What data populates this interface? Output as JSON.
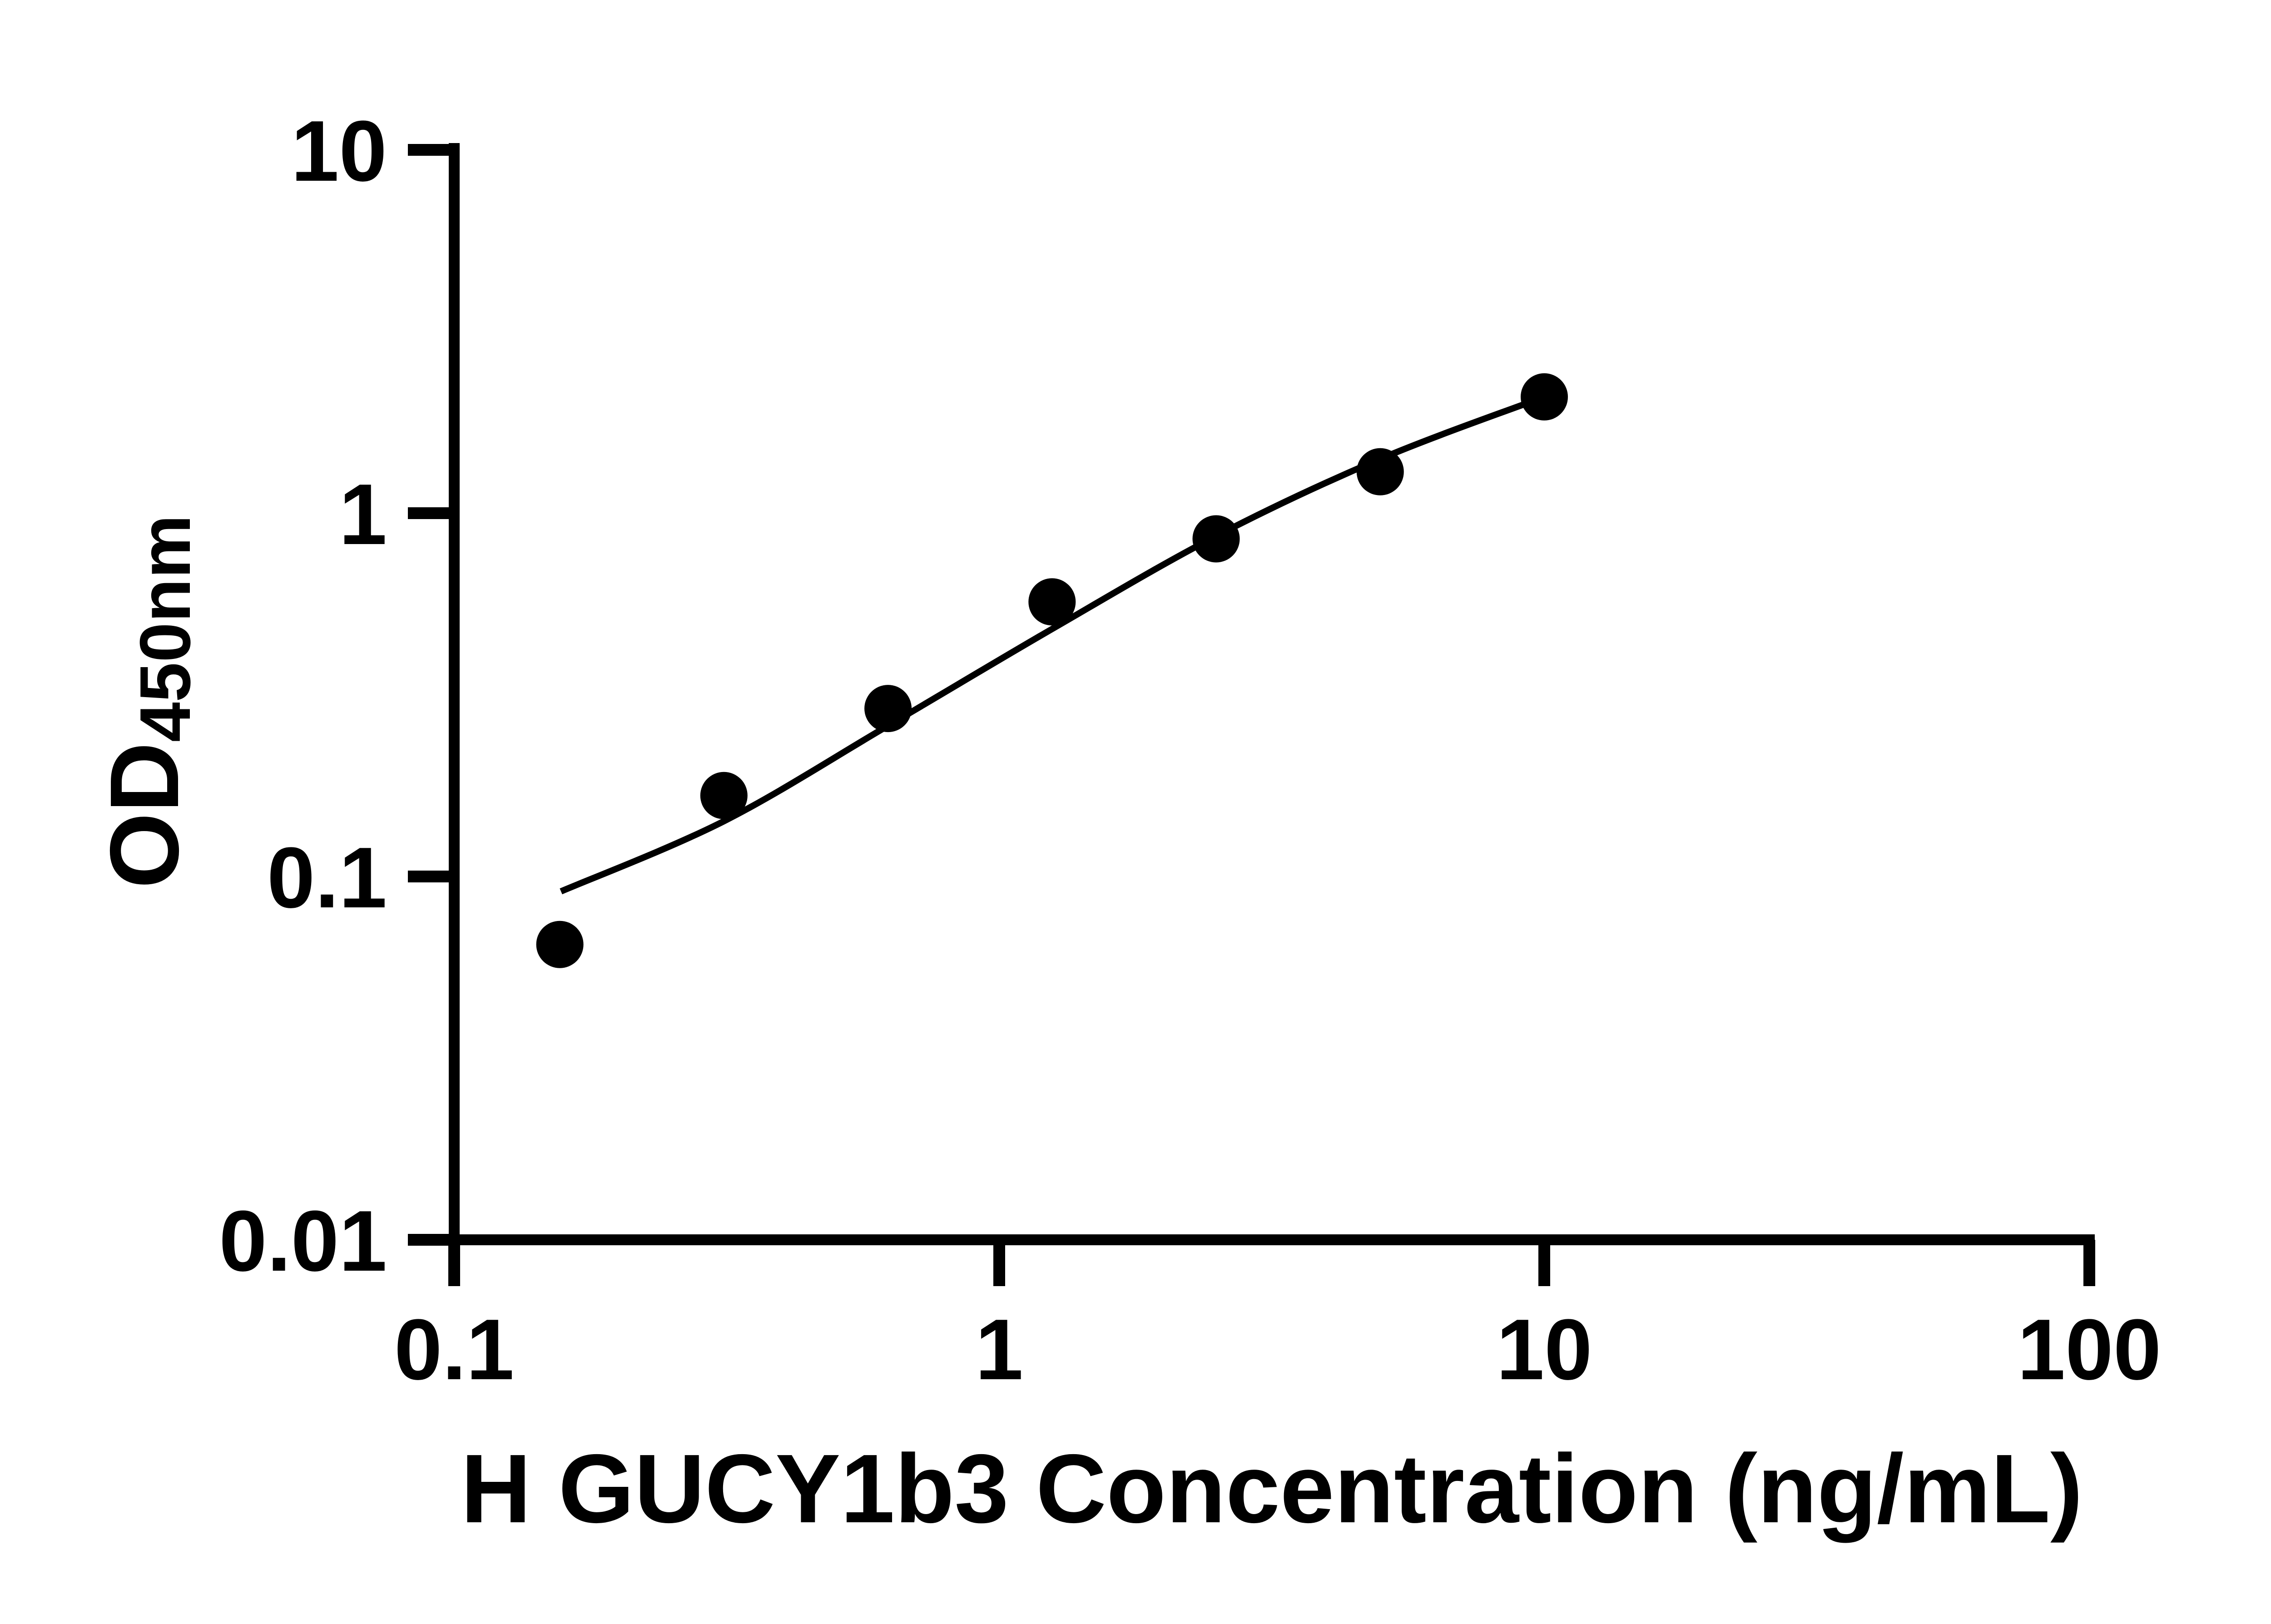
{
  "figure": {
    "background_color": "#ffffff",
    "ink_color": "#000000"
  },
  "chart_data": {
    "type": "scatter",
    "title": "",
    "xlabel": "H GUCY1b3 Concentration (ng/mL)",
    "ylabel": "OD450nm",
    "ylabel_parts": {
      "main": "OD",
      "subscript": "450nm"
    },
    "x_scale": "log",
    "y_scale": "log",
    "xlim": [
      0.1,
      100
    ],
    "ylim": [
      0.01,
      10
    ],
    "x_ticks": {
      "values": [
        0.1,
        1,
        10,
        100
      ],
      "labels": [
        "0.1",
        "1",
        "10",
        "100"
      ]
    },
    "y_ticks": {
      "values": [
        0.01,
        0.1,
        1,
        10
      ],
      "labels": [
        "0.01",
        "0.1",
        "1",
        "10"
      ]
    },
    "grid": false,
    "legend": false,
    "series": [
      {
        "name": "standards",
        "type": "scatter",
        "marker": "filled-circle",
        "color": "#000000",
        "x": [
          0.15625,
          0.3125,
          0.625,
          1.25,
          2.5,
          5,
          10
        ],
        "y": [
          0.065,
          0.167,
          0.29,
          0.57,
          0.85,
          1.3,
          2.09
        ]
      },
      {
        "name": "fit-curve",
        "type": "line",
        "color": "#000000",
        "x": [
          0.157,
          0.3125,
          0.625,
          1.25,
          2.5,
          5,
          10
        ],
        "y": [
          0.091,
          0.142,
          0.26,
          0.48,
          0.865,
          1.41,
          2.09
        ]
      }
    ]
  }
}
